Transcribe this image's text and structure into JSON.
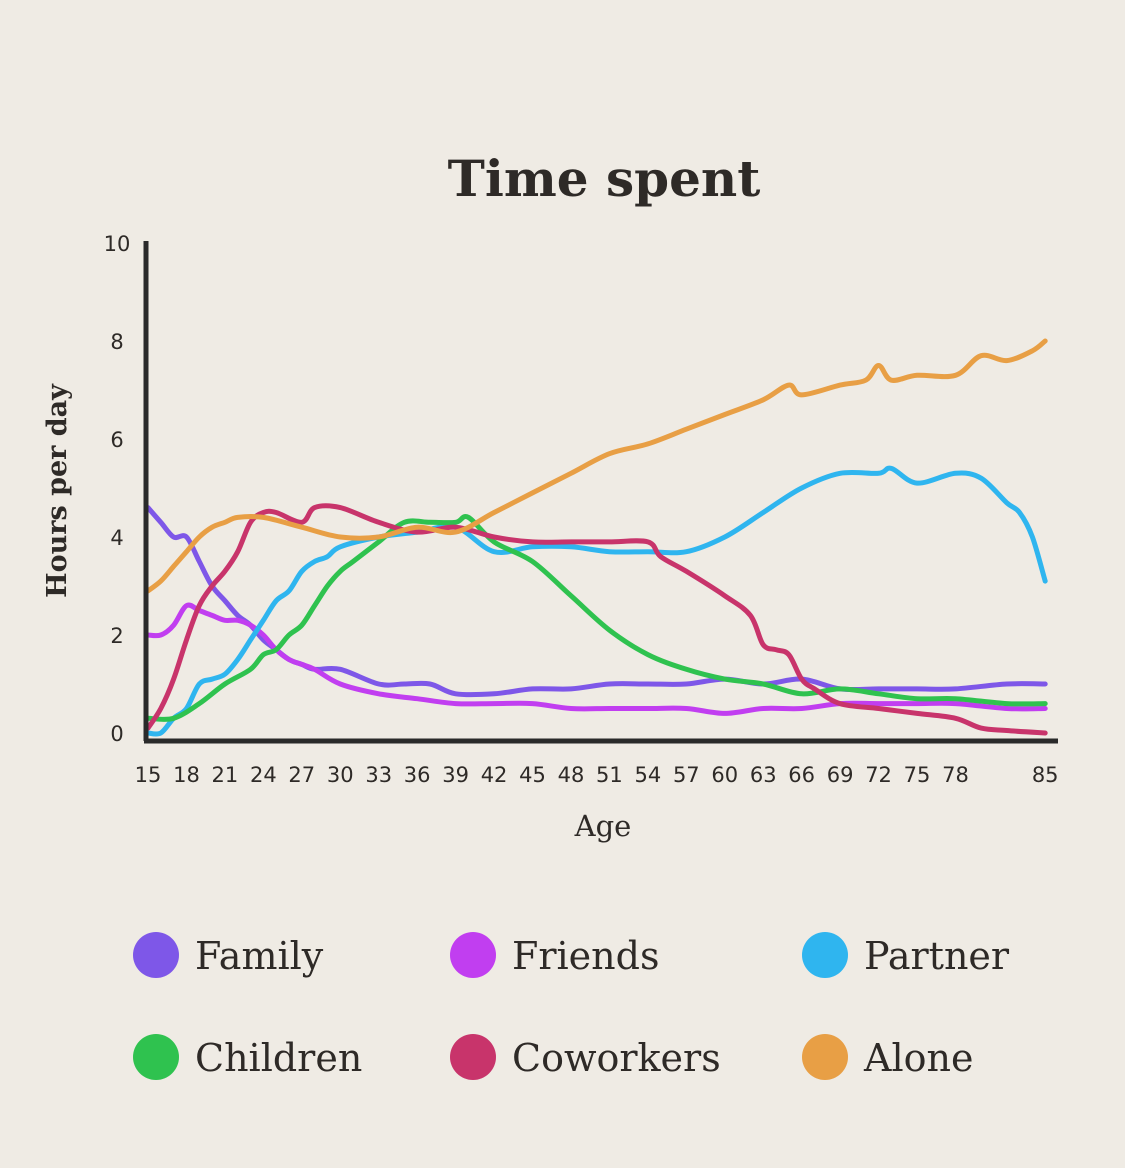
{
  "chart_data": {
    "type": "line",
    "title": "Time spent",
    "xlabel": "Age",
    "ylabel": "Hours per day",
    "xlim": [
      15,
      86
    ],
    "ylim": [
      0,
      10
    ],
    "x_ticks": [
      15,
      18,
      21,
      24,
      27,
      30,
      33,
      36,
      39,
      42,
      45,
      48,
      51,
      54,
      57,
      60,
      63,
      66,
      69,
      72,
      75,
      78,
      85
    ],
    "y_ticks": [
      0,
      2,
      4,
      6,
      8,
      10
    ],
    "series": [
      {
        "name": "Family",
        "color": "#7e57e8",
        "x": [
          15,
          16,
          17,
          18,
          19,
          20,
          21,
          22,
          23,
          24,
          25,
          26,
          27,
          28,
          30,
          33,
          35,
          37,
          39,
          42,
          45,
          48,
          51,
          54,
          57,
          60,
          63,
          66,
          69,
          72,
          75,
          78,
          82,
          85
        ],
        "values": [
          4.6,
          4.3,
          4.0,
          4.0,
          3.5,
          3.0,
          2.7,
          2.4,
          2.2,
          1.9,
          1.7,
          1.5,
          1.4,
          1.3,
          1.3,
          1.0,
          1.0,
          1.0,
          0.8,
          0.8,
          0.9,
          0.9,
          1.0,
          1.0,
          1.0,
          1.1,
          1.0,
          1.1,
          0.9,
          0.9,
          0.9,
          0.9,
          1.0,
          1.0
        ]
      },
      {
        "name": "Friends",
        "color": "#c13ef0",
        "x": [
          15,
          16,
          17,
          18,
          19,
          20,
          21,
          22,
          23,
          24,
          25,
          26,
          27,
          28,
          30,
          33,
          36,
          39,
          42,
          45,
          48,
          51,
          54,
          57,
          60,
          63,
          66,
          69,
          72,
          75,
          78,
          82,
          85
        ],
        "values": [
          2.0,
          2.0,
          2.2,
          2.6,
          2.5,
          2.4,
          2.3,
          2.3,
          2.2,
          2.0,
          1.7,
          1.5,
          1.4,
          1.3,
          1.0,
          0.8,
          0.7,
          0.6,
          0.6,
          0.6,
          0.5,
          0.5,
          0.5,
          0.5,
          0.4,
          0.5,
          0.5,
          0.6,
          0.6,
          0.6,
          0.6,
          0.5,
          0.5
        ]
      },
      {
        "name": "Partner",
        "color": "#2fb5ef",
        "x": [
          15,
          16,
          17,
          18,
          19,
          20,
          21,
          22,
          23,
          24,
          25,
          26,
          27,
          28,
          29,
          30,
          33,
          36,
          39,
          42,
          45,
          48,
          51,
          54,
          57,
          60,
          63,
          66,
          69,
          72,
          73,
          75,
          78,
          80,
          82,
          83,
          84,
          85
        ],
        "values": [
          0.0,
          0.0,
          0.3,
          0.5,
          1.0,
          1.1,
          1.2,
          1.5,
          1.9,
          2.3,
          2.7,
          2.9,
          3.3,
          3.5,
          3.6,
          3.8,
          4.0,
          4.1,
          4.2,
          3.7,
          3.8,
          3.8,
          3.7,
          3.7,
          3.7,
          4.0,
          4.5,
          5.0,
          5.3,
          5.3,
          5.4,
          5.1,
          5.3,
          5.2,
          4.7,
          4.5,
          4.0,
          3.1
        ]
      },
      {
        "name": "Children",
        "color": "#2fc24f",
        "x": [
          15,
          17,
          19,
          21,
          23,
          24,
          25,
          26,
          27,
          28,
          29,
          30,
          31,
          33,
          35,
          37,
          39,
          40,
          42,
          45,
          48,
          51,
          54,
          57,
          60,
          63,
          66,
          69,
          72,
          75,
          78,
          82,
          85
        ],
        "values": [
          0.3,
          0.3,
          0.6,
          1.0,
          1.3,
          1.6,
          1.7,
          2.0,
          2.2,
          2.6,
          3.0,
          3.3,
          3.5,
          3.9,
          4.3,
          4.3,
          4.3,
          4.4,
          3.9,
          3.5,
          2.8,
          2.1,
          1.6,
          1.3,
          1.1,
          1.0,
          0.8,
          0.9,
          0.8,
          0.7,
          0.7,
          0.6,
          0.6
        ]
      },
      {
        "name": "Coworkers",
        "color": "#c8346b",
        "x": [
          15,
          16,
          17,
          18,
          19,
          20,
          21,
          22,
          23,
          24,
          25,
          27,
          28,
          30,
          33,
          36,
          39,
          42,
          45,
          48,
          51,
          54,
          55,
          57,
          60,
          62,
          63,
          64,
          65,
          66,
          67,
          69,
          72,
          75,
          78,
          80,
          82,
          85
        ],
        "values": [
          0.1,
          0.5,
          1.1,
          1.9,
          2.6,
          3.0,
          3.3,
          3.7,
          4.3,
          4.5,
          4.5,
          4.3,
          4.6,
          4.6,
          4.3,
          4.1,
          4.2,
          4.0,
          3.9,
          3.9,
          3.9,
          3.9,
          3.6,
          3.3,
          2.8,
          2.4,
          1.8,
          1.7,
          1.6,
          1.1,
          0.9,
          0.6,
          0.5,
          0.4,
          0.3,
          0.1,
          0.05,
          0.0
        ]
      },
      {
        "name": "Alone",
        "color": "#e89f45",
        "x": [
          15,
          16,
          17,
          18,
          19,
          20,
          21,
          22,
          24,
          27,
          30,
          33,
          36,
          39,
          42,
          45,
          48,
          51,
          54,
          57,
          60,
          63,
          65,
          66,
          69,
          71,
          72,
          73,
          75,
          78,
          80,
          82,
          84,
          85
        ],
        "values": [
          2.9,
          3.1,
          3.4,
          3.7,
          4.0,
          4.2,
          4.3,
          4.4,
          4.4,
          4.2,
          4.0,
          4.0,
          4.2,
          4.1,
          4.5,
          4.9,
          5.3,
          5.7,
          5.9,
          6.2,
          6.5,
          6.8,
          7.1,
          6.9,
          7.1,
          7.2,
          7.5,
          7.2,
          7.3,
          7.3,
          7.7,
          7.6,
          7.8,
          8.0
        ]
      }
    ]
  }
}
